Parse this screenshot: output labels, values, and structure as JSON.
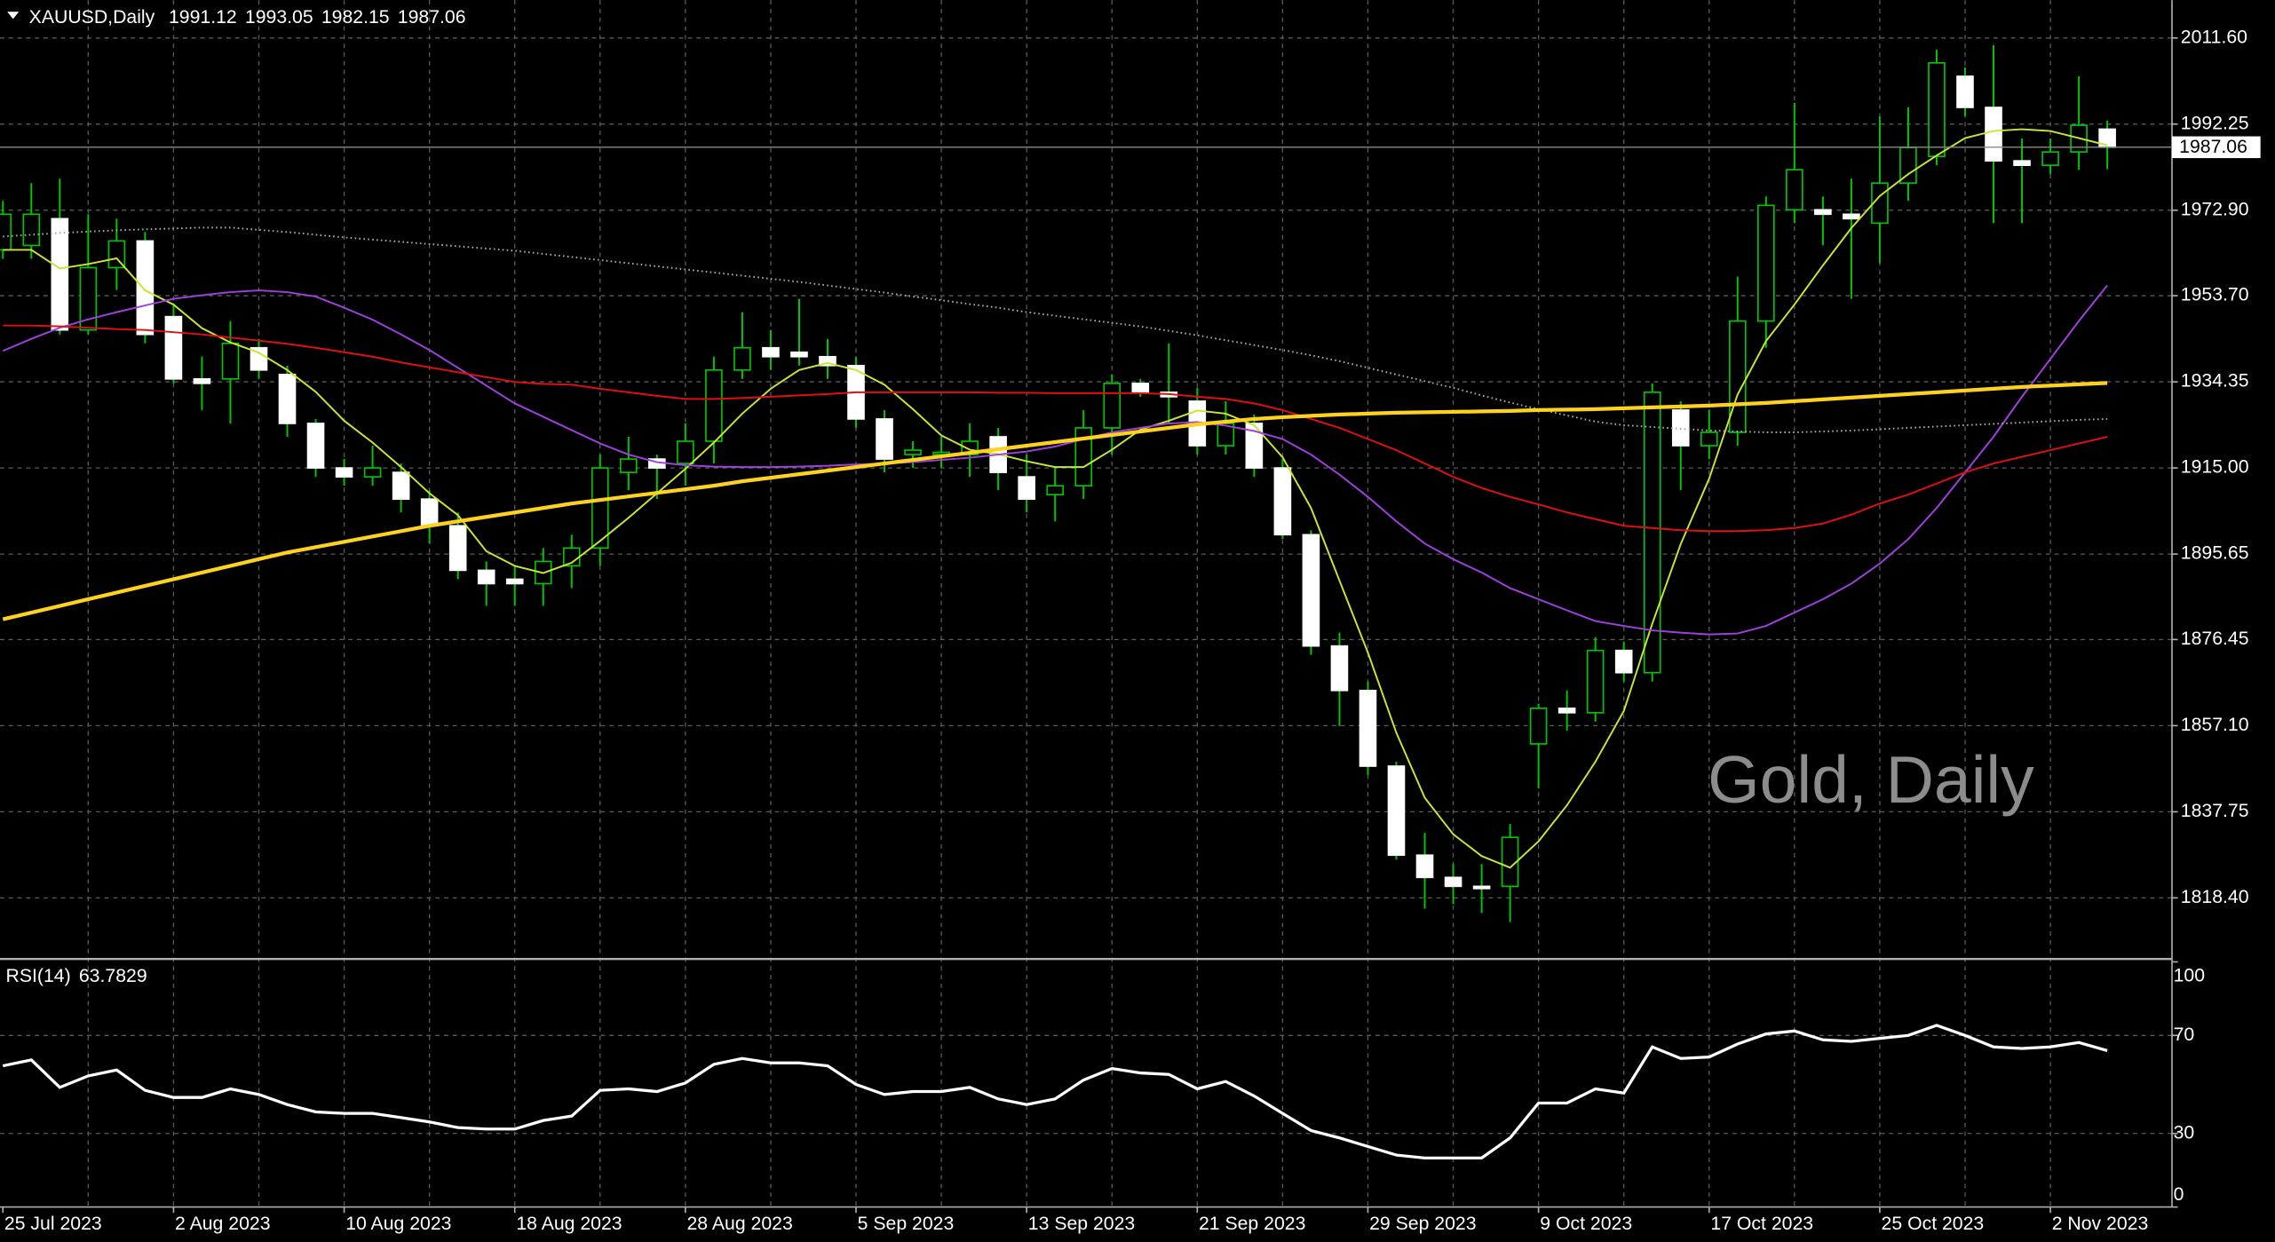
{
  "chart_data": [
    {
      "type": "candlestick",
      "title": "XAUUSD,Daily",
      "watermark": "Gold, Daily",
      "categories": [
        "25 Jul 2023",
        null,
        null,
        null,
        null,
        null,
        "2 Aug 2023",
        null,
        null,
        null,
        null,
        null,
        "10 Aug 2023",
        null,
        null,
        null,
        null,
        null,
        "18 Aug 2023",
        null,
        null,
        null,
        null,
        null,
        "28 Aug 2023",
        null,
        null,
        null,
        null,
        null,
        "5 Sep 2023",
        null,
        null,
        null,
        null,
        null,
        "13 Sep 2023",
        null,
        null,
        null,
        null,
        null,
        "21 Sep 2023",
        null,
        null,
        null,
        null,
        null,
        "29 Sep 2023",
        null,
        null,
        null,
        null,
        null,
        "9 Oct 2023",
        null,
        null,
        null,
        null,
        null,
        "17 Oct 2023",
        null,
        null,
        null,
        null,
        null,
        "25 Oct 2023",
        null,
        null,
        null,
        null,
        null,
        "2 Nov 2023",
        null,
        null
      ],
      "open": [
        1964,
        1965,
        1971,
        1946,
        1960,
        1966,
        1949,
        1935,
        1935,
        1942,
        1936,
        1925,
        1915,
        1913,
        1914,
        1908,
        1902,
        1892,
        1890,
        1889,
        1893,
        1897,
        1914,
        1917,
        1916,
        1921,
        1937,
        1942,
        1941,
        1940,
        1938,
        1926,
        1918,
        1918,
        1918,
        1922,
        1913,
        1909,
        1911,
        1924,
        1934,
        1932,
        1930,
        1920,
        1925,
        1915,
        1900,
        1875,
        1865,
        1848,
        1828,
        1823,
        1821,
        1821,
        1853,
        1861,
        1860,
        1874,
        1869,
        1928,
        1920,
        1923,
        1948,
        1973,
        1973,
        1972,
        1970,
        1979,
        1985,
        2003,
        1996,
        1984,
        1983,
        1986,
        1991.12
      ],
      "high": [
        1975,
        1979,
        1980,
        1972,
        1971,
        1968,
        1952,
        1940,
        1948,
        1944,
        1938,
        1926,
        1917,
        1920,
        1916,
        1910,
        1905,
        1894,
        1893,
        1897,
        1900,
        1918,
        1922,
        1918,
        1925,
        1940,
        1950,
        1946,
        1953,
        1944,
        1940,
        1928,
        1921,
        1922,
        1925,
        1924,
        1918,
        1915,
        1928,
        1936,
        1935,
        1943,
        1933,
        1930,
        1927,
        1917,
        1901,
        1878,
        1867,
        1849,
        1833,
        1826,
        1826,
        1835,
        1862,
        1865,
        1877,
        1876,
        1934,
        1930,
        1928,
        1958,
        1976,
        1997,
        1976,
        1980,
        1994,
        1996,
        2009,
        2005,
        2010,
        1989,
        1989,
        2003,
        1993.05
      ],
      "low": [
        1962,
        1962,
        1945,
        1945,
        1955,
        1943,
        1934,
        1928,
        1925,
        1935,
        1922,
        1913,
        1911,
        1911,
        1905,
        1898,
        1890,
        1884,
        1884,
        1884,
        1888,
        1893,
        1910,
        1908,
        1911,
        1916,
        1935,
        1937,
        1938,
        1935,
        1924,
        1914,
        1915,
        1915,
        1913,
        1910,
        1905,
        1903,
        1908,
        1918,
        1931,
        1925,
        1918,
        1918,
        1913,
        1899,
        1873,
        1857,
        1846,
        1827,
        1816,
        1817,
        1815,
        1813,
        1843,
        1856,
        1858,
        1867,
        1867,
        1910,
        1917,
        1920,
        1942,
        1970,
        1965,
        1953,
        1961,
        1975,
        1983,
        1994,
        1970,
        1970,
        1981,
        1982,
        1982.15
      ],
      "close": [
        1972,
        1972,
        1946,
        1960,
        1966,
        1945,
        1935,
        1934,
        1943,
        1937,
        1925,
        1915,
        1913,
        1915,
        1908,
        1902,
        1892,
        1889,
        1889,
        1894,
        1897,
        1915,
        1917,
        1915,
        1921,
        1937,
        1942,
        1940,
        1940,
        1938,
        1926,
        1917,
        1919,
        1918.5,
        1921,
        1914,
        1908,
        1911,
        1924,
        1934,
        1932,
        1931,
        1920,
        1925,
        1915,
        1900,
        1875,
        1865,
        1848,
        1828,
        1823,
        1821,
        1820.5,
        1832,
        1861,
        1860,
        1874,
        1869,
        1932,
        1920,
        1923,
        1948,
        1974,
        1982,
        1972,
        1971,
        1979,
        1987,
        2006,
        1996,
        1984,
        1983,
        1986,
        1992,
        1987.06
      ],
      "up_color": "#00c800",
      "up_fill": "#000000",
      "down_color": "#ffffff",
      "down_fill": "#ffffff",
      "wick_color": "#00c800",
      "series": [
        {
          "color": "#c8e632",
          "style": "solid",
          "values": [
            1964,
            1964,
            1959.8,
            1960.8,
            1962.1,
            1954.9,
            1951.7,
            1946.4,
            1943.2,
            1940.9,
            1937,
            1932.1,
            1925.6,
            1920.7,
            1915.2,
            1909.3,
            1904.4,
            1896.3,
            1893,
            1891.4,
            1893.7,
            1898.6,
            1903.8,
            1909.3,
            1914.8,
            1920.7,
            1927.2,
            1932.8,
            1937,
            1938.6,
            1937,
            1933.7,
            1928.2,
            1922.3,
            1919.1,
            1918.1,
            1916.5,
            1915.2,
            1915.2,
            1919.1,
            1923.6,
            1925.6,
            1927.9,
            1927.2,
            1924.6,
            1917.4,
            1906,
            1889.7,
            1873.5,
            1855.5,
            1840.9,
            1832.7,
            1827.8,
            1825.2,
            1831.1,
            1839.2,
            1849,
            1860.4,
            1880,
            1897.9,
            1912.6,
            1931.5,
            1943.5,
            1951.7,
            1960.5,
            1968.9,
            1976.1,
            1981,
            1985.2,
            1989.1,
            1990.7,
            1991.1,
            1990.7,
            1989.1,
            1987.5
          ]
        },
        {
          "color": "#a040e0",
          "style": "solid",
          "values": [
            1941.3,
            1944,
            1946.5,
            1948.4,
            1950,
            1951.5,
            1953,
            1953.8,
            1954.5,
            1954.9,
            1954.5,
            1953.5,
            1951,
            1948.3,
            1945,
            1941.5,
            1937.5,
            1933.5,
            1929.5,
            1926.5,
            1923.5,
            1920.5,
            1918,
            1916.3,
            1915.6,
            1915.3,
            1915.2,
            1915.2,
            1915.3,
            1915.5,
            1915.8,
            1916,
            1916.3,
            1916.8,
            1917.3,
            1918,
            1918.7,
            1919.8,
            1921.5,
            1923,
            1924,
            1925,
            1925.3,
            1924.5,
            1923.3,
            1921.5,
            1918,
            1913.5,
            1908.5,
            1903,
            1898,
            1894.5,
            1891.5,
            1888,
            1885.5,
            1883,
            1880.6,
            1879.5,
            1878.5,
            1878,
            1877.6,
            1877.8,
            1879.5,
            1882.5,
            1885.5,
            1889,
            1893.5,
            1899,
            1906,
            1914,
            1922,
            1931,
            1939.5,
            1948,
            1956
          ]
        },
        {
          "color": "#e01010",
          "style": "solid",
          "values": [
            1947,
            1947,
            1946.8,
            1946.5,
            1946.2,
            1946,
            1945.5,
            1945,
            1944.3,
            1943.6,
            1942.9,
            1942,
            1941,
            1940,
            1938.7,
            1937.6,
            1936.5,
            1935.4,
            1934.3,
            1933.9,
            1933.7,
            1932.8,
            1932,
            1931.2,
            1930.5,
            1930.5,
            1930.7,
            1931,
            1931.3,
            1931.6,
            1932,
            1932,
            1932,
            1932,
            1932,
            1931.9,
            1931.9,
            1931.8,
            1931.8,
            1931.8,
            1931.8,
            1931.6,
            1931,
            1930.5,
            1929.5,
            1928,
            1926,
            1924,
            1921.5,
            1919,
            1916,
            1913,
            1910.5,
            1908.5,
            1906.8,
            1905,
            1903.5,
            1902,
            1901.5,
            1901,
            1900.8,
            1900.8,
            1901,
            1901.5,
            1902.5,
            1904.5,
            1907,
            1909,
            1911.5,
            1914,
            1916,
            1917.5,
            1919,
            1920.5,
            1922
          ]
        },
        {
          "color": "#a8a8a8",
          "style": "dotted",
          "values": [
            1967,
            1967.4,
            1967.8,
            1968.1,
            1968.4,
            1968.6,
            1968.8,
            1969,
            1969,
            1968.5,
            1968,
            1967.4,
            1966.8,
            1966.3,
            1965.8,
            1965.3,
            1964.8,
            1964.3,
            1963.8,
            1963.1,
            1962.4,
            1961.7,
            1961,
            1960.3,
            1959.6,
            1958.9,
            1958.2,
            1957.5,
            1956.8,
            1956,
            1955.2,
            1954.4,
            1953.5,
            1952.7,
            1951.8,
            1951,
            1950,
            1949.2,
            1948.4,
            1947.6,
            1946.8,
            1945.8,
            1944.8,
            1943.7,
            1942.6,
            1941.5,
            1940.3,
            1939,
            1937.5,
            1936,
            1934.5,
            1933,
            1931.3,
            1929.7,
            1928.2,
            1926.8,
            1925.4,
            1924.6,
            1924.2,
            1923.8,
            1923.4,
            1923.2,
            1923,
            1923,
            1923.2,
            1923.4,
            1923.7,
            1924,
            1924.3,
            1924.6,
            1924.9,
            1925.2,
            1925.5,
            1925.8,
            1926
          ]
        },
        {
          "color": "#ffd21e",
          "style": "thick",
          "values": [
            1881,
            1882.5,
            1884,
            1885.5,
            1887,
            1888.5,
            1890,
            1891.5,
            1893,
            1894.5,
            1896,
            1897.2,
            1898.4,
            1899.6,
            1900.8,
            1902,
            1903,
            1904,
            1905,
            1906,
            1907,
            1907.8,
            1908.6,
            1909.4,
            1910.2,
            1911,
            1912,
            1912.8,
            1913.6,
            1914.4,
            1915.2,
            1916,
            1916.8,
            1917.6,
            1918.4,
            1919.2,
            1920,
            1920.8,
            1921.6,
            1922.4,
            1923.2,
            1924,
            1924.8,
            1925.4,
            1926,
            1926.4,
            1926.7,
            1927,
            1927.2,
            1927.4,
            1927.5,
            1927.6,
            1927.7,
            1927.8,
            1928,
            1928.1,
            1928.2,
            1928.4,
            1928.6,
            1928.8,
            1929,
            1929.3,
            1929.6,
            1930,
            1930.4,
            1930.8,
            1931.2,
            1931.6,
            1932,
            1932.4,
            1932.8,
            1933.2,
            1933.5,
            1933.8,
            1934.1
          ]
        }
      ],
      "ylim": [
        1805,
        2020.1
      ],
      "yticks": [
        {
          "value": 2011.6,
          "label": "2011.60"
        },
        {
          "value": 1992.25,
          "label": "1992.25"
        },
        {
          "value": 1972.9,
          "label": "1972.90"
        },
        {
          "value": 1953.7,
          "label": "1953.70"
        },
        {
          "value": 1934.35,
          "label": "1934.35"
        },
        {
          "value": 1915,
          "label": "1915.00"
        },
        {
          "value": 1895.65,
          "label": "1895.65"
        },
        {
          "value": 1876.45,
          "label": "1876.45"
        },
        {
          "value": 1857.1,
          "label": "1857.10"
        },
        {
          "value": 1837.75,
          "label": "1837.75"
        },
        {
          "value": 1818.4,
          "label": "1818.40"
        }
      ],
      "grid": true
    },
    {
      "type": "line",
      "title": "RSI(14)",
      "color": "#ffffff",
      "values": [
        57.6,
        60,
        48.8,
        53.5,
        55.9,
        47.6,
        44.7,
        44.7,
        48.2,
        45.9,
        41.8,
        38.8,
        38.2,
        38.2,
        36.5,
        34.7,
        32.4,
        31.8,
        31.8,
        35.3,
        37.1,
        47.6,
        48.2,
        47.1,
        50.6,
        58.2,
        60.6,
        58.8,
        58.8,
        57.6,
        50,
        45.9,
        47.1,
        47.1,
        48.8,
        44.1,
        41.8,
        44.1,
        51.8,
        56.5,
        54.7,
        54.1,
        48.2,
        51.2,
        45.3,
        38.2,
        31.2,
        28.2,
        24.7,
        21.2,
        20,
        20,
        20,
        28.2,
        42.4,
        42.4,
        48.2,
        46.5,
        65.3,
        60.6,
        61.2,
        66.5,
        70.6,
        71.8,
        68.2,
        67.6,
        68.8,
        70,
        74.1,
        70,
        65.3,
        64.7,
        65.3,
        67.1,
        63.7829
      ],
      "ylim": [
        0,
        100
      ],
      "yticks": [
        100,
        70,
        30,
        0
      ],
      "grid": true
    }
  ]
}
